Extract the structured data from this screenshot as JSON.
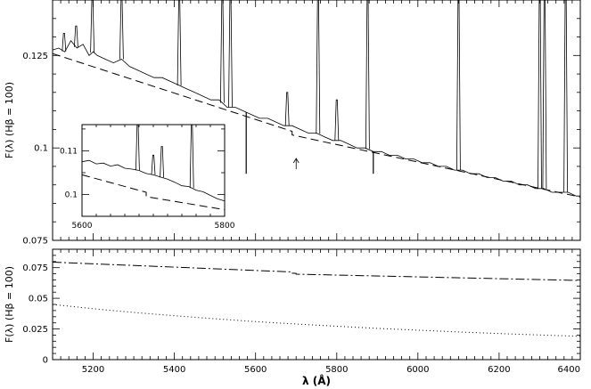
{
  "chart_data": [
    {
      "type": "line",
      "panel": "top",
      "ylabel": "F(λ) (Hβ = 100)",
      "xlim": [
        5100,
        6400
      ],
      "ylim": [
        0.075,
        0.14
      ],
      "yticks": [
        0.075,
        0.1,
        0.125
      ],
      "ytick_labels": [
        "0.075",
        "0.1",
        "0.125"
      ],
      "xticks_major": [
        5200,
        5400,
        5600,
        5800,
        6000,
        6200,
        6400
      ],
      "series": [
        {
          "style": "solid",
          "x": [
            5100,
            5115,
            5130,
            5145,
            5160,
            5175,
            5190,
            5200,
            5210,
            5230,
            5250,
            5270,
            5290,
            5310,
            5330,
            5350,
            5370,
            5390,
            5410,
            5430,
            5450,
            5470,
            5490,
            5510,
            5520,
            5530,
            5550,
            5570,
            5590,
            5610,
            5630,
            5650,
            5670,
            5690,
            5710,
            5730,
            5750,
            5770,
            5790,
            5810,
            5830,
            5850,
            5870,
            5890,
            5910,
            5930,
            5950,
            5970,
            5990,
            6010,
            6030,
            6050,
            6070,
            6090,
            6110,
            6130,
            6150,
            6170,
            6190,
            6210,
            6230,
            6250,
            6270,
            6290,
            6310,
            6330,
            6350,
            6370,
            6390,
            6400
          ],
          "y": [
            0.1265,
            0.127,
            0.126,
            0.129,
            0.127,
            0.128,
            0.125,
            0.126,
            0.125,
            0.124,
            0.123,
            0.124,
            0.122,
            0.121,
            0.12,
            0.119,
            0.119,
            0.118,
            0.117,
            0.116,
            0.115,
            0.114,
            0.113,
            0.113,
            0.112,
            0.111,
            0.111,
            0.11,
            0.109,
            0.108,
            0.108,
            0.107,
            0.106,
            0.106,
            0.105,
            0.104,
            0.104,
            0.103,
            0.102,
            0.102,
            0.101,
            0.1,
            0.1,
            0.099,
            0.099,
            0.098,
            0.098,
            0.097,
            0.097,
            0.096,
            0.096,
            0.095,
            0.095,
            0.094,
            0.094,
            0.093,
            0.093,
            0.092,
            0.092,
            0.091,
            0.091,
            0.09,
            0.09,
            0.089,
            0.089,
            0.088,
            0.088,
            0.088,
            0.087,
            0.087
          ]
        },
        {
          "style": "dashed",
          "x": [
            5100,
            5690,
            5690,
            6400
          ],
          "y": [
            0.1255,
            0.1045,
            0.1035,
            0.0867
          ]
        }
      ],
      "emission_lines": [
        {
          "x": 5128,
          "top": 0.131
        },
        {
          "x": 5158,
          "top": 0.133
        },
        {
          "x": 5198,
          "top": 0.14
        },
        {
          "x": 5270,
          "top": 0.14
        },
        {
          "x": 5412,
          "top": 0.14
        },
        {
          "x": 5518,
          "top": 0.14
        },
        {
          "x": 5538,
          "top": 0.14
        },
        {
          "x": 5678,
          "top": 0.115
        },
        {
          "x": 5754,
          "top": 0.14
        },
        {
          "x": 5800,
          "top": 0.113
        },
        {
          "x": 5876,
          "top": 0.14
        },
        {
          "x": 6100,
          "top": 0.14
        },
        {
          "x": 6300,
          "top": 0.14
        },
        {
          "x": 6312,
          "top": 0.14
        },
        {
          "x": 6364,
          "top": 0.14
        }
      ],
      "absorption_dips": [
        {
          "x": 5577,
          "bottom": 0.093
        },
        {
          "x": 5890,
          "bottom": 0.093
        }
      ],
      "arrow_x": 5700
    },
    {
      "type": "line",
      "panel": "inset",
      "xlim": [
        5600,
        5800
      ],
      "ylim": [
        0.095,
        0.116
      ],
      "yticks": [
        0.1,
        0.11
      ],
      "ytick_labels": [
        "0.1",
        "0.11"
      ],
      "xticks": [
        5600,
        5800
      ],
      "xtick_labels": [
        "5600",
        "5800"
      ],
      "series": [
        {
          "style": "solid",
          "x": [
            5600,
            5610,
            5620,
            5630,
            5640,
            5650,
            5660,
            5670,
            5680,
            5690,
            5700,
            5710,
            5720,
            5730,
            5740,
            5750,
            5760,
            5770,
            5780,
            5790,
            5800
          ],
          "y": [
            0.1075,
            0.1078,
            0.107,
            0.1072,
            0.1065,
            0.1068,
            0.106,
            0.1058,
            0.1055,
            0.1048,
            0.1045,
            0.104,
            0.1035,
            0.1028,
            0.102,
            0.1018,
            0.101,
            0.1006,
            0.0998,
            0.099,
            0.0985
          ]
        },
        {
          "style": "dashed",
          "x": [
            5600,
            5690,
            5690,
            5800
          ],
          "y": [
            0.1045,
            0.1005,
            0.0995,
            0.0965
          ]
        }
      ],
      "emission_lines": [
        {
          "x": 5678,
          "top": 0.116
        },
        {
          "x": 5700,
          "top": 0.109
        },
        {
          "x": 5712,
          "top": 0.111
        },
        {
          "x": 5754,
          "top": 0.116
        }
      ]
    },
    {
      "type": "line",
      "panel": "bottom",
      "xlabel": "λ (Å)",
      "ylabel": "F(λ) (Hβ = 100)",
      "xlim": [
        5100,
        6400
      ],
      "ylim": [
        0,
        0.09
      ],
      "yticks": [
        0,
        0.025,
        0.05,
        0.075
      ],
      "ytick_labels": [
        "0",
        "0.025",
        "0.05",
        "0.075"
      ],
      "xticks_major": [
        5200,
        5400,
        5600,
        5800,
        6000,
        6200,
        6400
      ],
      "xtick_labels": [
        "5200",
        "5400",
        "5600",
        "5800",
        "6000",
        "6200",
        "6400"
      ],
      "series": [
        {
          "style": "dashdot",
          "x": [
            5100,
            5690,
            5690,
            5700,
            5700,
            6400
          ],
          "y": [
            0.0795,
            0.0715,
            0.0705,
            0.0703,
            0.0697,
            0.0645
          ]
        },
        {
          "style": "dotted",
          "x": [
            5100,
            5200,
            5300,
            5400,
            5500,
            5600,
            5700,
            5800,
            5900,
            6000,
            6100,
            6200,
            6300,
            6400
          ],
          "y": [
            0.045,
            0.0415,
            0.0385,
            0.0358,
            0.0333,
            0.031,
            0.029,
            0.0272,
            0.0255,
            0.024,
            0.0226,
            0.0213,
            0.0201,
            0.019
          ]
        }
      ]
    }
  ]
}
